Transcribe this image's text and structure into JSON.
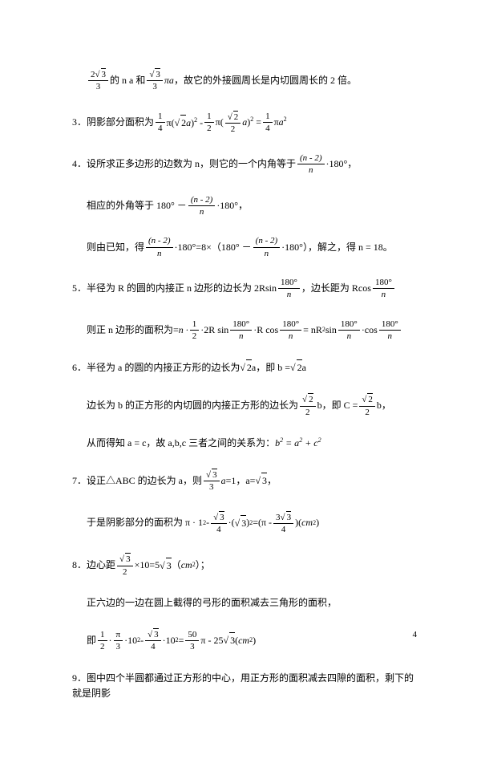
{
  "page_number": "4",
  "lines": {
    "l1a": "的 n a 和",
    "l1b": "，故它的外接圆周长是内切圆周长的 2 倍。",
    "l3a": "3．阴影部分面积为",
    "l4a": "4．设所求正多边形的边数为 n，则它的一个内角等于",
    "l4b": "·180°，",
    "l4c": "相应的外角等于 180° －",
    "l4d": "·180°，",
    "l4e": "则由已知，得",
    "l4f": "·180°=8×（180° －",
    "l4g": "·180°），解之，得 n = 18。",
    "l5a": "5．半径为 R 的圆的内接正 n 边形的边长为 2Rsin",
    "l5b": "，边长距为 Rcos",
    "l5c": "则正 n 边形的面积为=",
    "l6a": "6．半径为 a 的圆的内接正方形的边长为",
    "l6b": " a，即 b = ",
    "l6c": " a",
    "l6d": "边长为 b 的正方形的内切圆的内接正方形的边长为",
    "l6e": " b，即 C = ",
    "l6f": " b，",
    "l6g": "从而得知 a = c，故 a,b,c 三者之间的关系为：",
    "l7a": "7．设正△ABC 的边长为 a，则",
    "l7b": " =1，a=",
    "l7c": "，",
    "l7d": "于是阴影部分的面积为 π · 1",
    "l7e": " - ",
    "l7f": " =(π - ",
    "l8a": "8．边心距",
    "l8b": "×10=5",
    "l8c": "（",
    "l8d": "）；",
    "l8e": "正六边的一边在圆上截得的弓形的面积减去三角形的面积，",
    "l8f": "即",
    "l9a": "9．图中四个半圆都通过正方形的中心，用正方形的面积减去四隙的面积，剩下的就是阴影",
    "frac1_num": "2",
    "frac1_den": "3",
    "frac2_num_rt": "3",
    "frac2_den": "3",
    "frac3_num": "1",
    "frac3_den": "4",
    "frac4_num": "1",
    "frac4_den": "2",
    "frac5_num_rt": "2",
    "frac5_den": "2",
    "frac6_num": "1",
    "frac6_den": "4",
    "n2": "(n - 2)",
    "n": "n",
    "deg180": "180°",
    "sqrt2": "2",
    "sqrt3": "3",
    "pi_a": "πa",
    "a": "a",
    "it_a": "a",
    "it_b": "b",
    "it_c": "c",
    "sq": "2",
    "cm2": "cm",
    "expr_b2": "b",
    "expr_eq": " = a",
    "expr_plus": " + c",
    "l7_sqrt3": "·(",
    "l7_r": ")",
    "l7_end": ")(",
    "l7_cm": ")",
    "frac_3sqrt3_num": "3",
    "frac_3sqrt3_den": "4",
    "frac_sqrt3_4_den": "4",
    "frac_sqrt3_2_den": "2",
    "frac_1_2_num": "1",
    "frac_1_2_den": "2",
    "frac_pi_3_num": "π",
    "frac_pi_3_den": "3",
    "l8_10sq": "·10",
    "l8_minus": " - ",
    "l8_eq": " = ",
    "frac_50_3_num": "50",
    "frac_50_3_den": "3",
    "l8_pi": "π - 25",
    "l8_cm": "(",
    "l8_cmend": ")",
    "l5_mid_n": " n ·",
    "l5_2R": "·2R sin",
    "l5_Rcos": "·R cos",
    "l5_eq": " = nR",
    "l5_sin": " sin",
    "l5_cos": "·cos"
  }
}
